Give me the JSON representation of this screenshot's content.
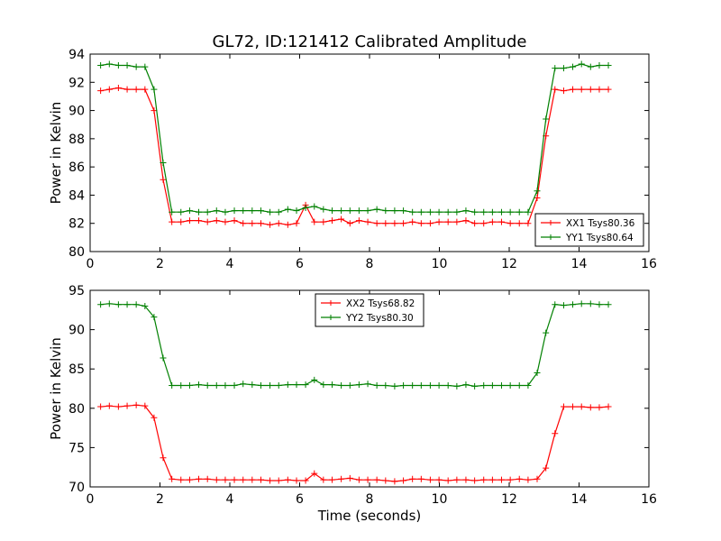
{
  "figure": {
    "title": "GL72, ID:121412 Calibrated Amplitude",
    "background": "#ffffff"
  },
  "chart_data": [
    {
      "type": "line",
      "ylabel": "Power in Kelvin",
      "xlabel": "",
      "xlim": [
        0,
        16
      ],
      "ylim": [
        80,
        94
      ],
      "xticks": [
        "0",
        "2",
        "4",
        "6",
        "8",
        "10",
        "12",
        "14",
        "16"
      ],
      "yticks": [
        "80",
        "82",
        "84",
        "86",
        "88",
        "90",
        "92",
        "94"
      ],
      "legend_position": "lower-right",
      "grid": false,
      "series": [
        {
          "name": "XX1 Tsys80.36",
          "color": "#ff0000",
          "x": [
            0.3,
            0.55,
            0.81,
            1.06,
            1.32,
            1.57,
            1.83,
            2.09,
            2.34,
            2.6,
            2.85,
            3.11,
            3.36,
            3.62,
            3.87,
            4.13,
            4.38,
            4.64,
            4.89,
            5.15,
            5.4,
            5.66,
            5.91,
            6.17,
            6.42,
            6.68,
            6.93,
            7.19,
            7.44,
            7.7,
            7.95,
            8.21,
            8.46,
            8.72,
            8.97,
            9.23,
            9.48,
            9.74,
            9.99,
            10.25,
            10.5,
            10.76,
            11.01,
            11.27,
            11.52,
            11.78,
            12.03,
            12.29,
            12.54,
            12.8,
            13.05,
            13.31,
            13.56,
            13.82,
            14.07,
            14.33,
            14.58,
            14.84
          ],
          "y": [
            91.4,
            91.5,
            91.6,
            91.5,
            91.5,
            91.5,
            90.0,
            85.1,
            82.1,
            82.1,
            82.2,
            82.2,
            82.1,
            82.2,
            82.1,
            82.2,
            82.0,
            82.0,
            82.0,
            81.9,
            82.0,
            81.9,
            82.0,
            83.3,
            82.1,
            82.1,
            82.2,
            82.3,
            82.0,
            82.2,
            82.1,
            82.0,
            82.0,
            82.0,
            82.0,
            82.1,
            82.0,
            82.0,
            82.1,
            82.1,
            82.1,
            82.2,
            82.0,
            82.0,
            82.1,
            82.1,
            82.0,
            82.0,
            82.0,
            83.8,
            88.2,
            91.5,
            91.4,
            91.5,
            91.5,
            91.5,
            91.5,
            91.5
          ]
        },
        {
          "name": "YY1 Tsys80.64",
          "color": "#008000",
          "x": [
            0.3,
            0.55,
            0.81,
            1.06,
            1.32,
            1.57,
            1.83,
            2.09,
            2.34,
            2.6,
            2.85,
            3.11,
            3.36,
            3.62,
            3.87,
            4.13,
            4.38,
            4.64,
            4.89,
            5.15,
            5.4,
            5.66,
            5.91,
            6.17,
            6.42,
            6.68,
            6.93,
            7.19,
            7.44,
            7.7,
            7.95,
            8.21,
            8.46,
            8.72,
            8.97,
            9.23,
            9.48,
            9.74,
            9.99,
            10.25,
            10.5,
            10.76,
            11.01,
            11.27,
            11.52,
            11.78,
            12.03,
            12.29,
            12.54,
            12.8,
            13.05,
            13.31,
            13.56,
            13.82,
            14.07,
            14.33,
            14.58,
            14.84
          ],
          "y": [
            93.2,
            93.3,
            93.2,
            93.2,
            93.1,
            93.1,
            91.5,
            86.3,
            82.8,
            82.8,
            82.9,
            82.8,
            82.8,
            82.9,
            82.8,
            82.9,
            82.9,
            82.9,
            82.9,
            82.8,
            82.8,
            83.0,
            82.9,
            83.1,
            83.2,
            83.0,
            82.9,
            82.9,
            82.9,
            82.9,
            82.9,
            83.0,
            82.9,
            82.9,
            82.9,
            82.8,
            82.8,
            82.8,
            82.8,
            82.8,
            82.8,
            82.9,
            82.8,
            82.8,
            82.8,
            82.8,
            82.8,
            82.8,
            82.8,
            84.3,
            89.4,
            93.0,
            93.0,
            93.1,
            93.3,
            93.1,
            93.2,
            93.2
          ]
        }
      ]
    },
    {
      "type": "line",
      "ylabel": "Power in Kelvin",
      "xlabel": "Time (seconds)",
      "xlim": [
        0,
        16
      ],
      "ylim": [
        70,
        95
      ],
      "xticks": [
        "0",
        "2",
        "4",
        "6",
        "8",
        "10",
        "12",
        "14",
        "16"
      ],
      "yticks": [
        "70",
        "75",
        "80",
        "85",
        "90",
        "95"
      ],
      "legend_position": "upper-center",
      "grid": false,
      "series": [
        {
          "name": "XX2 Tsys68.82",
          "color": "#ff0000",
          "x": [
            0.3,
            0.55,
            0.81,
            1.06,
            1.32,
            1.57,
            1.83,
            2.09,
            2.34,
            2.6,
            2.85,
            3.11,
            3.36,
            3.62,
            3.87,
            4.13,
            4.38,
            4.64,
            4.89,
            5.15,
            5.4,
            5.66,
            5.91,
            6.17,
            6.42,
            6.68,
            6.93,
            7.19,
            7.44,
            7.7,
            7.95,
            8.21,
            8.46,
            8.72,
            8.97,
            9.23,
            9.48,
            9.74,
            9.99,
            10.25,
            10.5,
            10.76,
            11.01,
            11.27,
            11.52,
            11.78,
            12.03,
            12.29,
            12.54,
            12.8,
            13.05,
            13.31,
            13.56,
            13.82,
            14.07,
            14.33,
            14.58,
            14.84
          ],
          "y": [
            80.2,
            80.3,
            80.2,
            80.3,
            80.4,
            80.3,
            78.8,
            73.7,
            71.0,
            70.9,
            70.9,
            71.0,
            71.0,
            70.9,
            70.9,
            70.9,
            70.9,
            70.9,
            70.9,
            70.8,
            70.8,
            70.9,
            70.8,
            70.8,
            71.7,
            70.9,
            70.9,
            71.0,
            71.1,
            70.9,
            70.9,
            70.9,
            70.8,
            70.7,
            70.8,
            71.0,
            71.0,
            70.9,
            70.9,
            70.8,
            70.9,
            70.9,
            70.8,
            70.9,
            70.9,
            70.9,
            70.9,
            71.0,
            70.9,
            71.0,
            72.4,
            76.8,
            80.2,
            80.2,
            80.2,
            80.1,
            80.1,
            80.2
          ]
        },
        {
          "name": "YY2 Tsys80.30",
          "color": "#008000",
          "x": [
            0.3,
            0.55,
            0.81,
            1.06,
            1.32,
            1.57,
            1.83,
            2.09,
            2.34,
            2.6,
            2.85,
            3.11,
            3.36,
            3.62,
            3.87,
            4.13,
            4.38,
            4.64,
            4.89,
            5.15,
            5.4,
            5.66,
            5.91,
            6.17,
            6.42,
            6.68,
            6.93,
            7.19,
            7.44,
            7.7,
            7.95,
            8.21,
            8.46,
            8.72,
            8.97,
            9.23,
            9.48,
            9.74,
            9.99,
            10.25,
            10.5,
            10.76,
            11.01,
            11.27,
            11.52,
            11.78,
            12.03,
            12.29,
            12.54,
            12.8,
            13.05,
            13.31,
            13.56,
            13.82,
            14.07,
            14.33,
            14.58,
            14.84
          ],
          "y": [
            93.2,
            93.3,
            93.2,
            93.2,
            93.2,
            93.0,
            91.6,
            86.4,
            82.9,
            82.9,
            82.9,
            83.0,
            82.9,
            82.9,
            82.9,
            82.9,
            83.1,
            83.0,
            82.9,
            82.9,
            82.9,
            83.0,
            83.0,
            83.0,
            83.6,
            83.0,
            83.0,
            82.9,
            82.9,
            83.0,
            83.1,
            82.9,
            82.9,
            82.8,
            82.9,
            82.9,
            82.9,
            82.9,
            82.9,
            82.9,
            82.8,
            83.0,
            82.8,
            82.9,
            82.9,
            82.9,
            82.9,
            82.9,
            82.9,
            84.5,
            89.6,
            93.2,
            93.1,
            93.2,
            93.3,
            93.3,
            93.2,
            93.2
          ]
        }
      ]
    }
  ]
}
